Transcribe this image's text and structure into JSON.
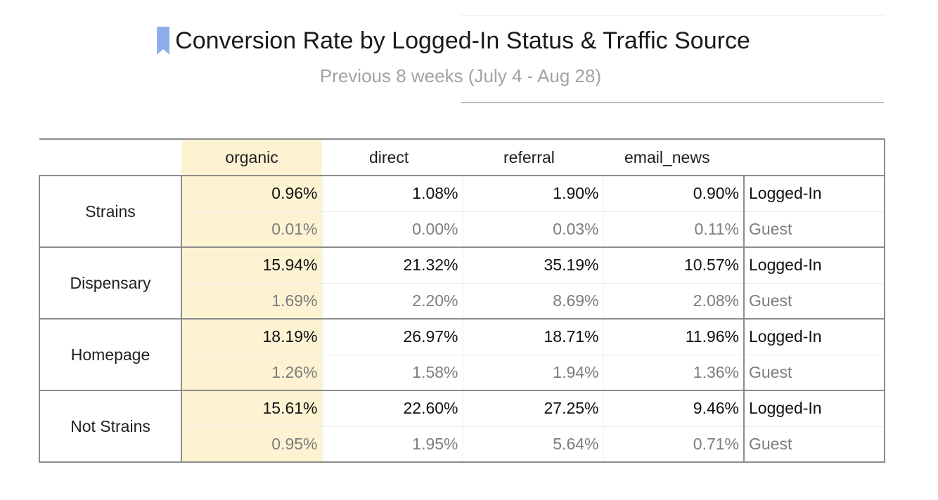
{
  "header": {
    "title": "Conversion Rate by Logged-In Status & Traffic Source",
    "subtitle": "Previous 8 weeks (July 4 - Aug 28)",
    "bookmark_color": "#8fadea"
  },
  "table": {
    "highlight_color": "#fdf3d2",
    "columns": [
      "organic",
      "direct",
      "referral",
      "email_news"
    ],
    "groups": [
      {
        "page": "Strains",
        "logged_in": {
          "label": "Logged-In",
          "values": [
            "0.96%",
            "1.08%",
            "1.90%",
            "0.90%"
          ]
        },
        "guest": {
          "label": "Guest",
          "values": [
            "0.01%",
            "0.00%",
            "0.03%",
            "0.11%"
          ]
        }
      },
      {
        "page": "Dispensary",
        "logged_in": {
          "label": "Logged-In",
          "values": [
            "15.94%",
            "21.32%",
            "35.19%",
            "10.57%"
          ]
        },
        "guest": {
          "label": "Guest",
          "values": [
            "1.69%",
            "2.20%",
            "8.69%",
            "2.08%"
          ]
        }
      },
      {
        "page": "Homepage",
        "logged_in": {
          "label": "Logged-In",
          "values": [
            "18.19%",
            "26.97%",
            "18.71%",
            "11.96%"
          ]
        },
        "guest": {
          "label": "Guest",
          "values": [
            "1.26%",
            "1.58%",
            "1.94%",
            "1.36%"
          ]
        }
      },
      {
        "page": "Not Strains",
        "logged_in": {
          "label": "Logged-In",
          "values": [
            "15.61%",
            "22.60%",
            "27.25%",
            "9.46%"
          ]
        },
        "guest": {
          "label": "Guest",
          "values": [
            "0.95%",
            "1.95%",
            "5.64%",
            "0.71%"
          ]
        }
      }
    ]
  }
}
